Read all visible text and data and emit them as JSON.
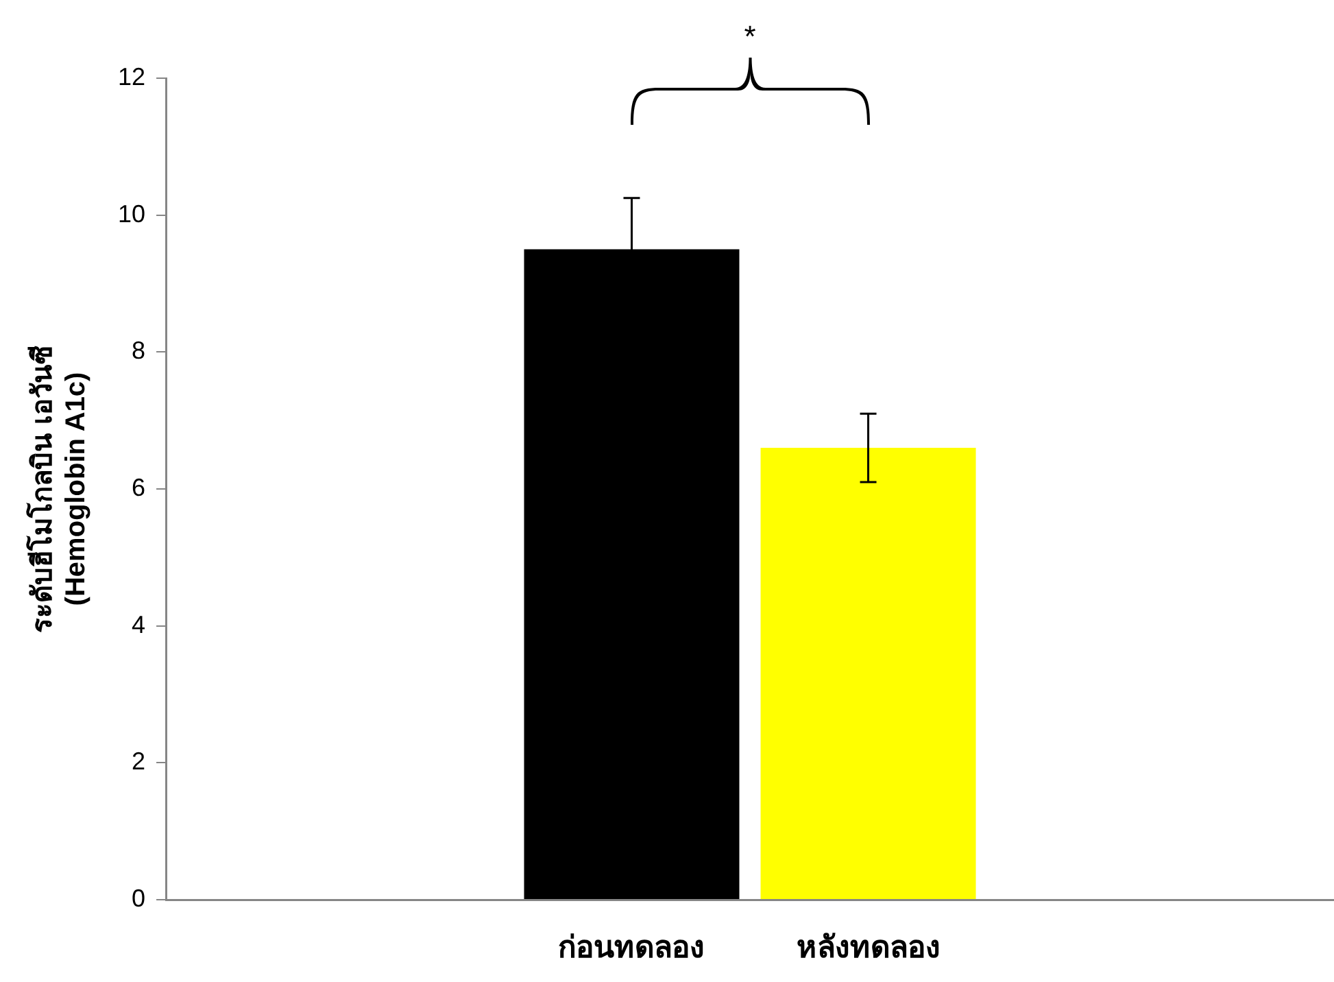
{
  "chart_data": {
    "type": "bar",
    "ylabel": [
      "ระดับฮีโมโกลบิน เอวันซี",
      "(Hemoglobin A1c)"
    ],
    "categories": [
      null
    ],
    "series": [
      {
        "name": "ก่อนทดลอง",
        "color": "#000000",
        "values": [
          9.5
        ],
        "errors": [
          0.75
        ]
      },
      {
        "name": "หลังทดลอง",
        "color": "#ffff00",
        "values": [
          6.6
        ],
        "errors": [
          0.5
        ]
      }
    ],
    "ylim": [
      0,
      12
    ],
    "yticks": [
      0,
      2,
      4,
      6,
      8,
      10,
      12
    ],
    "grid": false,
    "legend": false,
    "annotations": [
      "*"
    ]
  }
}
